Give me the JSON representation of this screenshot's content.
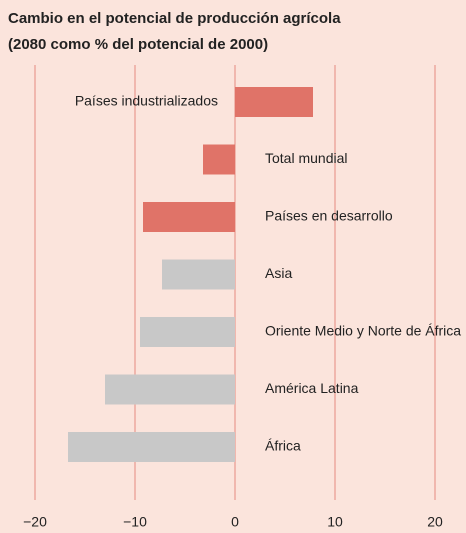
{
  "chart_data": {
    "type": "barh",
    "title": "Cambio en el potencial de producción agrícola",
    "subtitle": "(2080 como % del potencial de 2000)",
    "categories": [
      "Países industrializados",
      "Total mundial",
      "Países en desarrollo",
      "Asia",
      "Oriente Medio y Norte de África",
      "América Latina",
      "África"
    ],
    "values": [
      7.8,
      -3.2,
      -9.2,
      -7.3,
      -9.5,
      -13,
      -16.7
    ],
    "colors": [
      "#e07368",
      "#e07368",
      "#e07368",
      "#c8c8c8",
      "#c8c8c8",
      "#c8c8c8",
      "#c8c8c8"
    ],
    "xlim": [
      -20,
      20
    ],
    "xticks": [
      {
        "value": -20,
        "label": "−20"
      },
      {
        "value": -10,
        "label": "−10"
      },
      0,
      10,
      20
    ],
    "grid": true
  }
}
